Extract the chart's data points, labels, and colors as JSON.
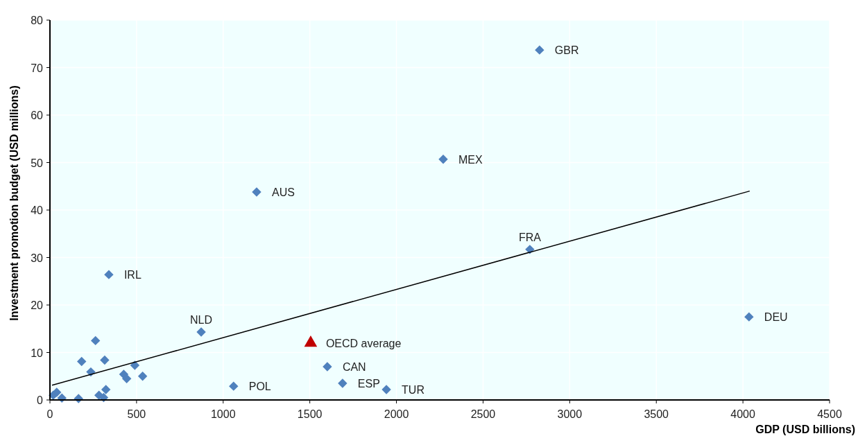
{
  "chart_data": {
    "type": "scatter",
    "xlabel": "GDP (USD billions)",
    "ylabel": "Investment promotion budget (USD millions)",
    "xlim": [
      0,
      4500
    ],
    "xticks": [
      0,
      500,
      1000,
      1500,
      2000,
      2500,
      3000,
      3500,
      4000,
      4500
    ],
    "ylim": [
      0,
      80
    ],
    "yticks": [
      0,
      10,
      20,
      30,
      40,
      50,
      60,
      70,
      80
    ],
    "grid": true,
    "series": [
      {
        "marker": "diamond",
        "color": "#4f81bd",
        "x": [
          19,
          39,
          69,
          165,
          263,
          183,
          316,
          236,
          283,
          310,
          323,
          426,
          443,
          490,
          535,
          873,
          1060,
          340,
          1193,
          2270,
          2826,
          2770,
          4035,
          1601,
          1689,
          1942
        ],
        "values": [
          1.0,
          1.6,
          0.4,
          0.3,
          12.5,
          8.1,
          8.4,
          5.9,
          1.0,
          0.5,
          2.2,
          5.4,
          4.5,
          7.3,
          5.0,
          14.3,
          2.9,
          26.4,
          43.8,
          50.7,
          73.7,
          31.7,
          17.5,
          7.0,
          3.5,
          2.2
        ]
      },
      {
        "marker": "triangle",
        "color": "#c00000",
        "x": [
          1505
        ],
        "values": [
          12.0
        ]
      },
      {
        "type": "line",
        "color": "#000000",
        "x": [
          12,
          4039
        ],
        "values": [
          3.1,
          44.0
        ]
      }
    ],
    "annotations": [
      {
        "text": "NLD",
        "x": 873,
        "y": 14.3
      },
      {
        "text": "POL",
        "x": 1060,
        "y": 2.9
      },
      {
        "text": "IRL",
        "x": 340,
        "y": 26.4
      },
      {
        "text": "AUS",
        "x": 1193,
        "y": 43.8
      },
      {
        "text": "MEX",
        "x": 2270,
        "y": 50.7
      },
      {
        "text": "GBR",
        "x": 2826,
        "y": 73.7
      },
      {
        "text": "FRA",
        "x": 2770,
        "y": 31.7
      },
      {
        "text": "DEU",
        "x": 4035,
        "y": 17.5
      },
      {
        "text": "CAN",
        "x": 1601,
        "y": 7.0
      },
      {
        "text": "ESP",
        "x": 1689,
        "y": 3.5
      },
      {
        "text": "TUR",
        "x": 1942,
        "y": 2.2
      },
      {
        "text": "OECD average",
        "x": 1505,
        "y": 12.0
      }
    ]
  }
}
